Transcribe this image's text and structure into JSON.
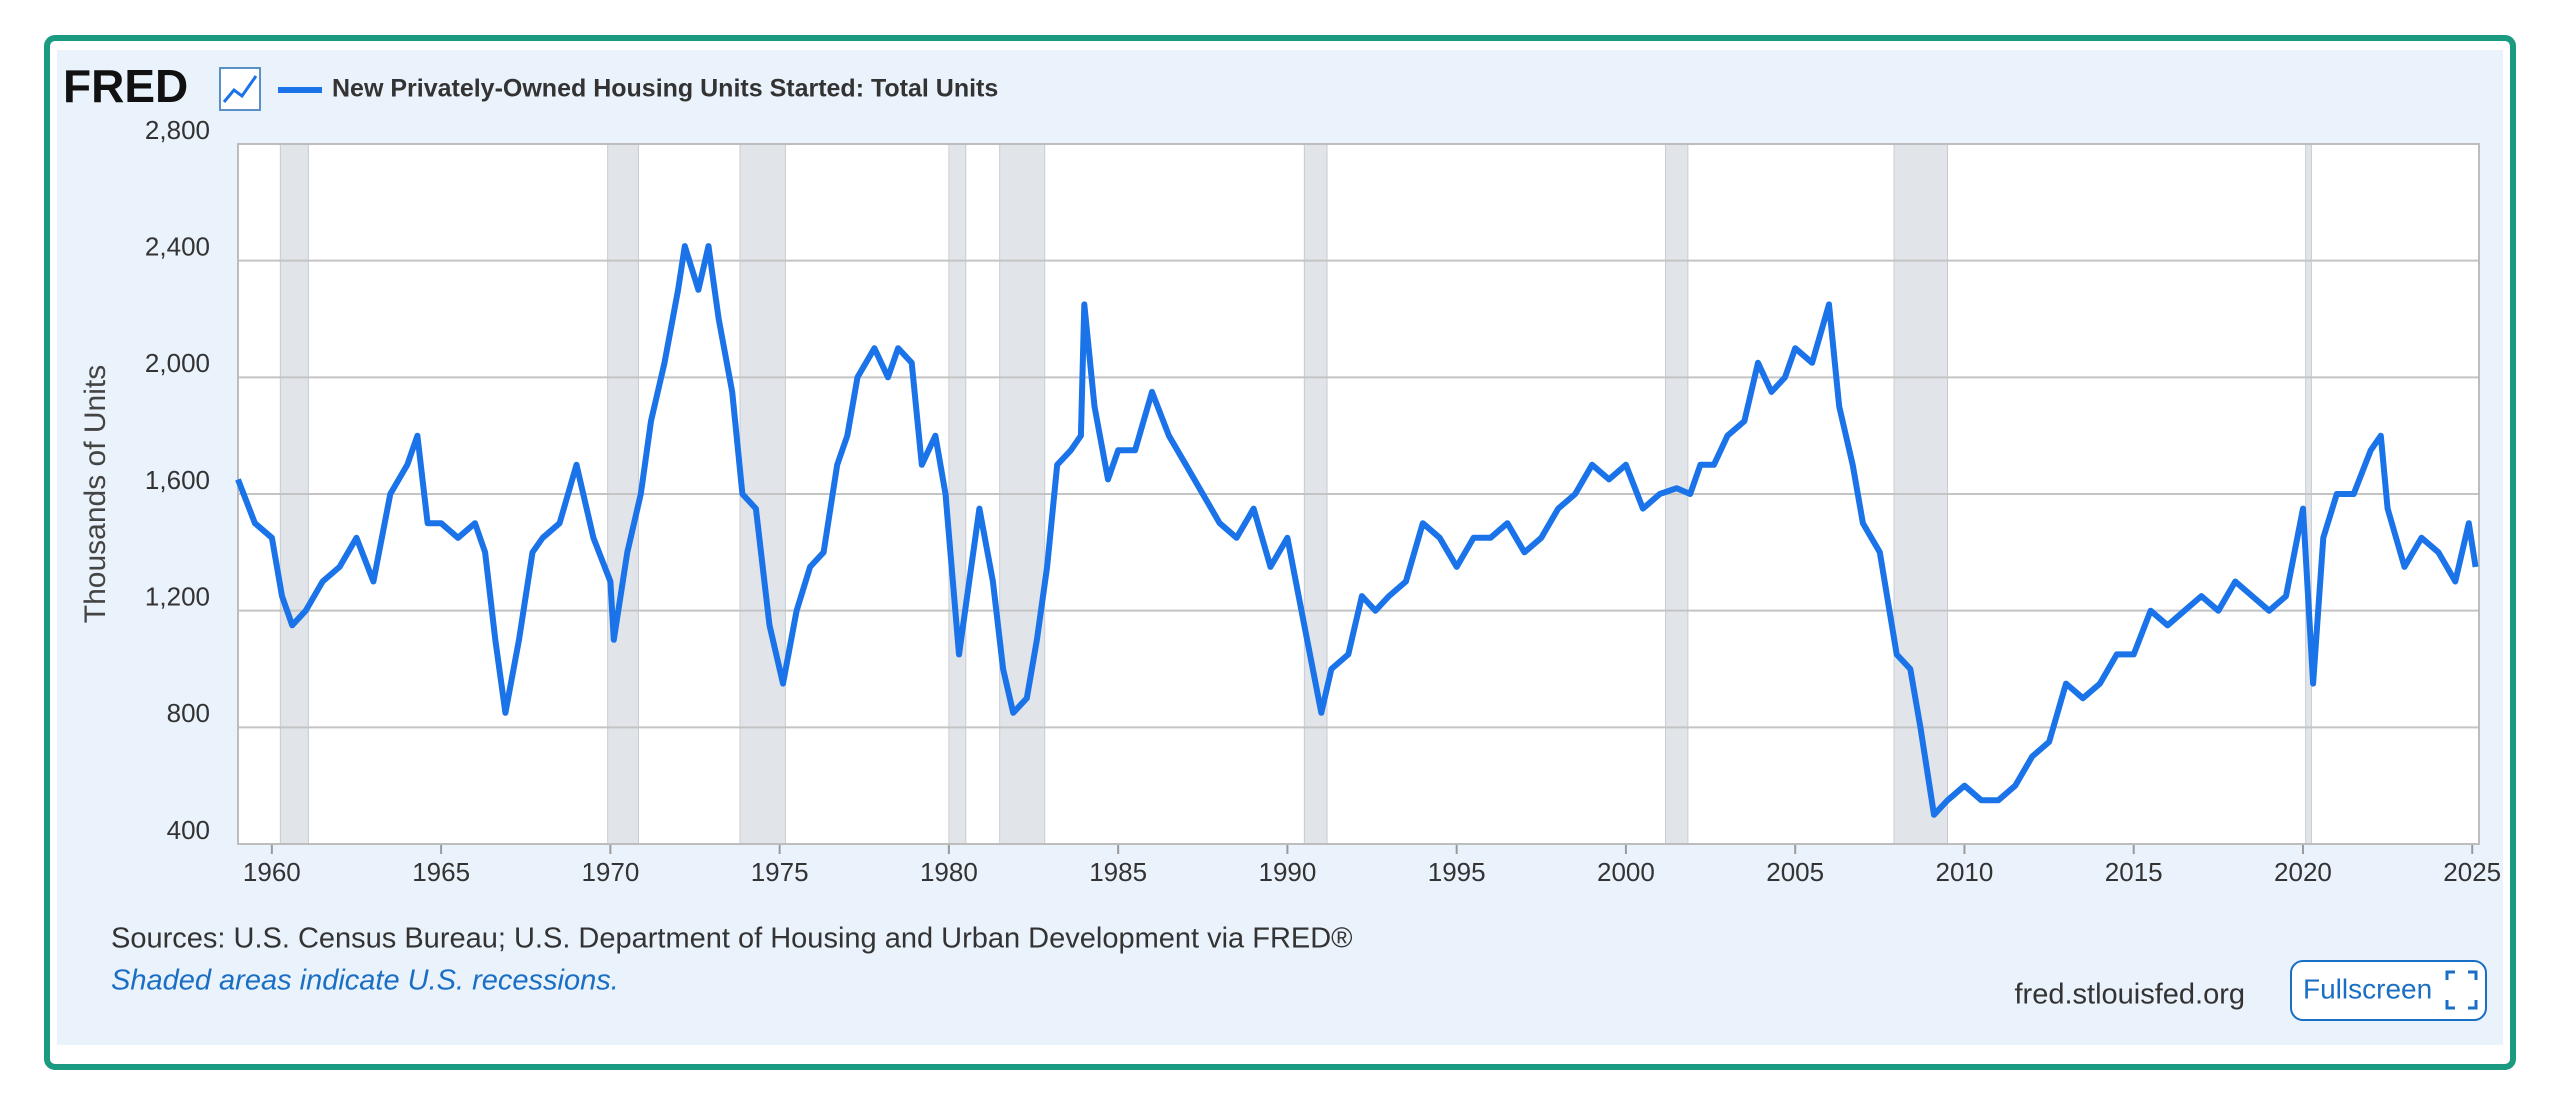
{
  "page": {
    "logo": "FRED",
    "source": "Sources: U.S. Census Bureau; U.S. Department of Housing and Urban Development via FRED®",
    "note": "Shaded areas indicate U.S. recessions.",
    "site": "fred.stlouisfed.org",
    "button": "Fullscreen"
  },
  "chart_data": {
    "type": "line",
    "y_label": "Thousands of Units",
    "x": [
      1959.0,
      1959.5,
      1960.0,
      1960.3,
      1960.6,
      1961.0,
      1961.5,
      1962.0,
      1962.5,
      1963.0,
      1963.5,
      1964.0,
      1964.3,
      1964.6,
      1965.0,
      1965.5,
      1966.0,
      1966.3,
      1966.6,
      1966.9,
      1967.3,
      1967.7,
      1968.0,
      1968.5,
      1969.0,
      1969.5,
      1970.0,
      1970.1,
      1970.5,
      1970.9,
      1971.2,
      1971.6,
      1972.0,
      1972.2,
      1972.6,
      1972.9,
      1973.2,
      1973.6,
      1973.9,
      1974.3,
      1974.7,
      1975.1,
      1975.5,
      1975.9,
      1976.3,
      1976.7,
      1977.0,
      1977.3,
      1977.8,
      1978.2,
      1978.5,
      1978.9,
      1979.2,
      1979.6,
      1979.9,
      1980.3,
      1980.6,
      1980.9,
      1981.3,
      1981.6,
      1981.9,
      1982.3,
      1982.6,
      1982.9,
      1983.2,
      1983.6,
      1983.9,
      1984.0,
      1984.3,
      1984.7,
      1985.0,
      1985.5,
      1986.0,
      1986.5,
      1987.0,
      1987.5,
      1988.0,
      1988.5,
      1989.0,
      1989.5,
      1990.0,
      1990.5,
      1991.0,
      1991.3,
      1991.8,
      1992.2,
      1992.6,
      1993.0,
      1993.5,
      1994.0,
      1994.5,
      1995.0,
      1995.5,
      1996.0,
      1996.5,
      1997.0,
      1997.5,
      1998.0,
      1998.5,
      1999.0,
      1999.5,
      2000.0,
      2000.5,
      2001.0,
      2001.5,
      2001.9,
      2002.2,
      2002.6,
      2003.0,
      2003.5,
      2003.9,
      2004.3,
      2004.7,
      2005.0,
      2005.5,
      2006.0,
      2006.3,
      2006.7,
      2007.0,
      2007.5,
      2008.0,
      2008.4,
      2008.7,
      2009.1,
      2009.5,
      2010.0,
      2010.5,
      2011.0,
      2011.5,
      2012.0,
      2012.5,
      2013.0,
      2013.5,
      2014.0,
      2014.5,
      2015.0,
      2015.5,
      2016.0,
      2016.5,
      2017.0,
      2017.5,
      2018.0,
      2018.5,
      2019.0,
      2019.5,
      2020.0,
      2020.3,
      2020.6,
      2021.0,
      2021.5,
      2022.0,
      2022.3,
      2022.5,
      2023.0,
      2023.5,
      2024.0,
      2024.5,
      2024.9,
      2025.1
    ],
    "series": [
      {
        "name": "New Privately-Owned Housing Units Started: Total Units",
        "color": "#1a73e8",
        "values": [
          1650,
          1500,
          1450,
          1250,
          1150,
          1200,
          1300,
          1350,
          1450,
          1300,
          1600,
          1700,
          1800,
          1500,
          1500,
          1450,
          1500,
          1400,
          1100,
          850,
          1100,
          1400,
          1450,
          1500,
          1700,
          1450,
          1300,
          1100,
          1400,
          1600,
          1850,
          2050,
          2300,
          2450,
          2300,
          2450,
          2200,
          1950,
          1600,
          1550,
          1150,
          950,
          1200,
          1350,
          1400,
          1700,
          1800,
          2000,
          2100,
          2000,
          2100,
          2050,
          1700,
          1800,
          1600,
          1050,
          1300,
          1550,
          1300,
          1000,
          850,
          900,
          1100,
          1350,
          1700,
          1750,
          1800,
          2250,
          1900,
          1650,
          1750,
          1750,
          1950,
          1800,
          1700,
          1600,
          1500,
          1450,
          1550,
          1350,
          1450,
          1150,
          850,
          1000,
          1050,
          1250,
          1200,
          1250,
          1300,
          1500,
          1450,
          1350,
          1450,
          1450,
          1500,
          1400,
          1450,
          1550,
          1600,
          1700,
          1650,
          1700,
          1550,
          1600,
          1620,
          1600,
          1700,
          1700,
          1800,
          1850,
          2050,
          1950,
          2000,
          2100,
          2050,
          2250,
          1900,
          1700,
          1500,
          1400,
          1050,
          1000,
          800,
          500,
          550,
          600,
          550,
          550,
          600,
          700,
          750,
          950,
          900,
          950,
          1050,
          1050,
          1200,
          1150,
          1200,
          1250,
          1200,
          1300,
          1250,
          1200,
          1250,
          1550,
          950,
          1450,
          1600,
          1600,
          1750,
          1800,
          1550,
          1350,
          1450,
          1400,
          1300,
          1500,
          1350
        ]
      }
    ],
    "recessions": [
      [
        1960.25,
        1961.08
      ],
      [
        1969.92,
        1970.83
      ],
      [
        1973.83,
        1975.17
      ],
      [
        1980.0,
        1980.5
      ],
      [
        1981.5,
        1982.83
      ],
      [
        1990.5,
        1991.17
      ],
      [
        2001.17,
        2001.83
      ],
      [
        2007.92,
        2009.5
      ],
      [
        2020.08,
        2020.25
      ]
    ],
    "xlim": [
      1959,
      2025.2
    ],
    "xticks": [
      1960,
      1965,
      1970,
      1975,
      1980,
      1985,
      1990,
      1995,
      2000,
      2005,
      2010,
      2015,
      2020,
      2025
    ],
    "ylim": [
      400,
      2800
    ],
    "yticks": [
      {
        "value": 400,
        "label": "400"
      },
      {
        "value": 800,
        "label": "800"
      },
      {
        "value": 1200,
        "label": "1,200"
      },
      {
        "value": 1600,
        "label": "1,600"
      },
      {
        "value": 2000,
        "label": "2,000"
      },
      {
        "value": 2400,
        "label": "2,400"
      },
      {
        "value": 2800,
        "label": "2,800"
      }
    ],
    "grid": true
  }
}
